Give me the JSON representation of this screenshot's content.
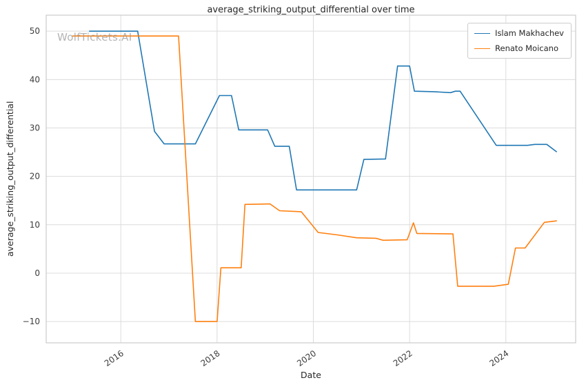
{
  "watermark": "WolfTickets.AI",
  "chart_data": {
    "type": "line",
    "title": "average_striking_output_differential over time",
    "xlabel": "Date",
    "ylabel": "average_striking_output_differential",
    "xlim": [
      2014.45,
      2025.45
    ],
    "ylim": [
      -14.4,
      53.3
    ],
    "xticks": [
      2016,
      2018,
      2020,
      2022,
      2024
    ],
    "yticks": [
      -10,
      0,
      10,
      20,
      30,
      40,
      50
    ],
    "grid": true,
    "legend_position": "upper right",
    "colors": {
      "grid": "#dcdcdc",
      "border": "#cccccc",
      "tick_text": "#3c3c3c"
    },
    "series": [
      {
        "name": "Islam Makhachev",
        "color": "#1f77b4",
        "x": [
          2015.35,
          2016.35,
          2016.7,
          2016.9,
          2017.55,
          2018.05,
          2018.3,
          2018.45,
          2019.05,
          2019.2,
          2019.5,
          2019.65,
          2020.9,
          2021.05,
          2021.5,
          2021.75,
          2022.0,
          2022.1,
          2022.5,
          2022.85,
          2022.95,
          2023.05,
          2023.8,
          2024.45,
          2024.6,
          2024.85,
          2025.05
        ],
        "y": [
          50,
          50,
          29.3,
          26.7,
          26.7,
          36.7,
          36.7,
          29.6,
          29.6,
          26.2,
          26.2,
          17.2,
          17.2,
          23.5,
          23.6,
          42.8,
          42.8,
          37.6,
          37.5,
          37.3,
          37.6,
          37.6,
          26.4,
          26.4,
          26.6,
          26.6,
          25.1
        ]
      },
      {
        "name": "Renato Moicano",
        "color": "#ff7f0e",
        "x": [
          2015.0,
          2017.2,
          2017.55,
          2018.0,
          2018.08,
          2018.5,
          2018.58,
          2019.1,
          2019.3,
          2019.75,
          2020.1,
          2020.5,
          2020.9,
          2021.3,
          2021.45,
          2021.95,
          2022.08,
          2022.15,
          2022.9,
          2023.0,
          2023.75,
          2024.05,
          2024.2,
          2024.4,
          2024.8,
          2025.05
        ],
        "y": [
          49,
          49,
          -10,
          -10,
          1.1,
          1.1,
          14.2,
          14.3,
          12.9,
          12.7,
          8.4,
          7.9,
          7.3,
          7.2,
          6.8,
          6.9,
          10.4,
          8.2,
          8.1,
          -2.7,
          -2.7,
          -2.3,
          5.2,
          5.2,
          10.5,
          10.8
        ]
      }
    ]
  }
}
